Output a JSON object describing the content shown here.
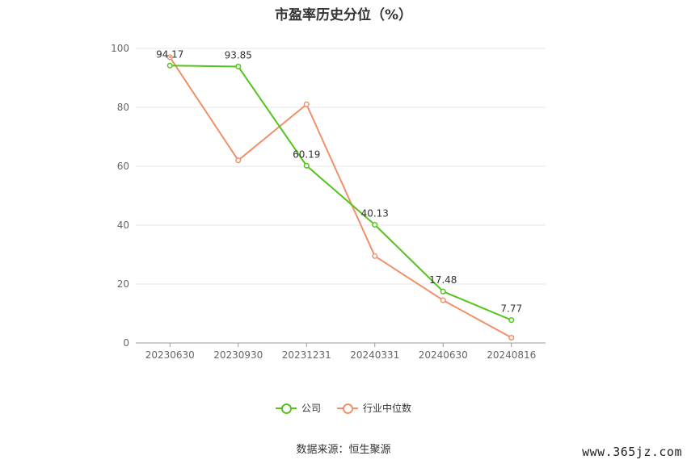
{
  "chart_data": {
    "type": "line",
    "title": "市盈率历史分位（%）",
    "categories": [
      "20230630",
      "20230930",
      "20231231",
      "20240331",
      "20240630",
      "20240816"
    ],
    "ylim": [
      0,
      100
    ],
    "yticks": [
      0,
      20,
      40,
      60,
      80,
      100
    ],
    "grid": true,
    "legend_position": "bottom",
    "series": [
      {
        "name": "公司",
        "color": "#52c41a",
        "values": [
          94.17,
          93.85,
          60.19,
          40.13,
          17.48,
          7.77
        ],
        "labels": [
          "94.17",
          "93.85",
          "60.19",
          "40.13",
          "17.48",
          "7.77"
        ]
      },
      {
        "name": "行业中位数",
        "color": "#f0906a",
        "values": [
          97,
          62,
          81,
          29.5,
          14.5,
          1.8
        ]
      }
    ]
  },
  "source_note": "数据来源：恒生聚源",
  "watermark": "www.365jz.com"
}
